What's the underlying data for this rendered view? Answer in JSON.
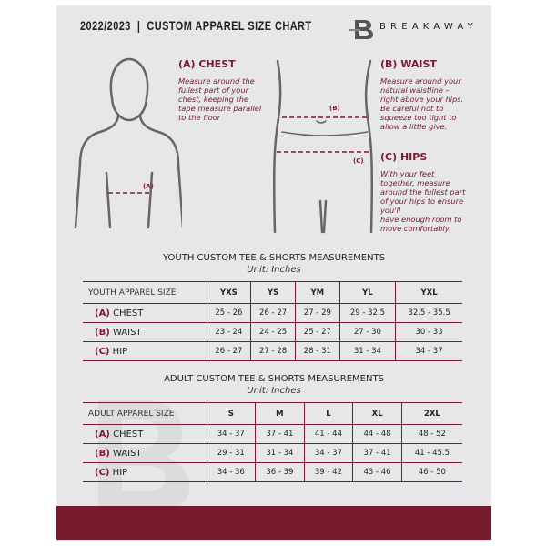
{
  "header": {
    "title": "2022/2023  |  CUSTOM APPAREL SIZE CHART",
    "brand": "BREAKAWAY",
    "logo_letter": "B"
  },
  "guide": {
    "chest": {
      "title": "(A) CHEST",
      "lines": [
        "Measure around the",
        "fullest part of your",
        "chest, keeping the",
        "tape measure parallel",
        "to the floor"
      ],
      "marker": "(A)"
    },
    "waist": {
      "title": "(B) WAIST",
      "lines": [
        "Measure around your",
        "natural waistline –",
        "right above your hips.",
        "Be careful not to",
        "squeeze too tight to",
        "allow a little give."
      ],
      "marker": "(B)"
    },
    "hips": {
      "title": "(C) HIPS",
      "lines": [
        "With your feet",
        "together, measure",
        "around the fullest part",
        "of your hips to ensure",
        "you'll",
        "have enough room to",
        "move comfortably."
      ],
      "marker": "(C)"
    }
  },
  "youth": {
    "title": "YOUTH CUSTOM TEE & SHORTS MEASUREMENTS",
    "unit": "Unit: Inches",
    "header": "YOUTH APPAREL SIZE",
    "sizes": [
      "YXS",
      "YS",
      "YM",
      "YL",
      "YXL"
    ],
    "rows": [
      {
        "letter": "(A)",
        "name": "CHEST",
        "values": [
          "25 - 26",
          "26 - 27",
          "27 - 29",
          "29 - 32.5",
          "32.5 - 35.5"
        ]
      },
      {
        "letter": "(B)",
        "name": "WAIST",
        "values": [
          "23 - 24",
          "24 - 25",
          "25 - 27",
          "27 - 30",
          "30 - 33"
        ]
      },
      {
        "letter": "(C)",
        "name": "HIP",
        "values": [
          "26 - 27",
          "27 - 28",
          "28 - 31",
          "31 - 34",
          "34 - 37"
        ]
      }
    ]
  },
  "adult": {
    "title": "ADULT CUSTOM TEE & SHORTS MEASUREMENTS",
    "unit": "Unit: Inches",
    "header": "ADULT APPAREL SIZE",
    "sizes": [
      "S",
      "M",
      "L",
      "XL",
      "2XL"
    ],
    "rows": [
      {
        "letter": "(A)",
        "name": "CHEST",
        "values": [
          "34 - 37",
          "37 - 41",
          "41 - 44",
          "44 - 48",
          "48 - 52"
        ]
      },
      {
        "letter": "(B)",
        "name": "WAIST",
        "values": [
          "29 - 31",
          "31 - 34",
          "34 - 37",
          "37 - 41",
          "41 - 45.5"
        ]
      },
      {
        "letter": "(C)",
        "name": "HIP",
        "values": [
          "34 - 36",
          "36 - 39",
          "39 - 42",
          "43 - 46",
          "46 - 50"
        ]
      }
    ]
  },
  "colors": {
    "accent": "#761b2e",
    "background": "#e7e7e9"
  }
}
